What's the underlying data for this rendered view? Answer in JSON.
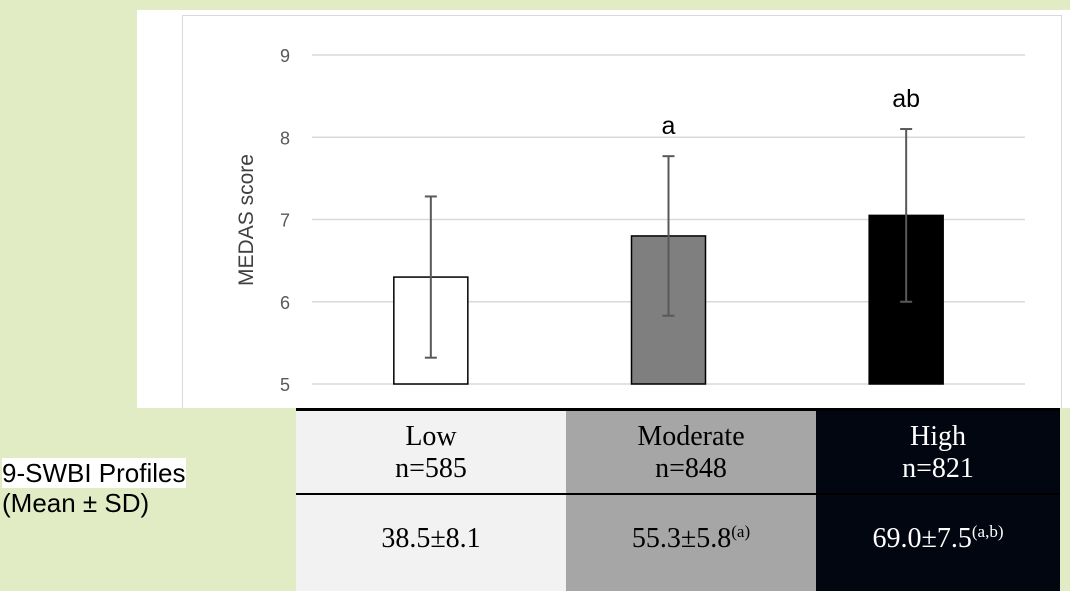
{
  "chart_data": {
    "type": "bar",
    "ylabel": "MEDAS score",
    "ylim": [
      5,
      9
    ],
    "yticks": [
      5,
      6,
      7,
      8,
      9
    ],
    "grid": true,
    "categories": [
      "Low",
      "Moderate",
      "High"
    ],
    "values": [
      6.3,
      6.8,
      7.05
    ],
    "error": [
      0.98,
      0.97,
      1.05
    ],
    "annotations": [
      "",
      "a",
      "ab"
    ],
    "bar_colors": [
      "#ffffff",
      "#7f7f7f",
      "#000000"
    ]
  },
  "table": {
    "row_label_line1": "9-SWBI Profiles",
    "row_label_line2": "(Mean ± SD)",
    "columns": [
      {
        "name": "Low",
        "n": "n=585",
        "value": "38.5±8.1",
        "sup": "",
        "bg": "#f2f2f2",
        "fg": "#000000"
      },
      {
        "name": "Moderate",
        "n": "n=848",
        "value": "55.3±5.8",
        "sup": "(a)",
        "bg": "#a6a6a6",
        "fg": "#000000"
      },
      {
        "name": "High",
        "n": "n=821",
        "value": "69.0±7.5",
        "sup": "(a,b)",
        "bg": "#020611",
        "fg": "#ffffff"
      }
    ]
  }
}
